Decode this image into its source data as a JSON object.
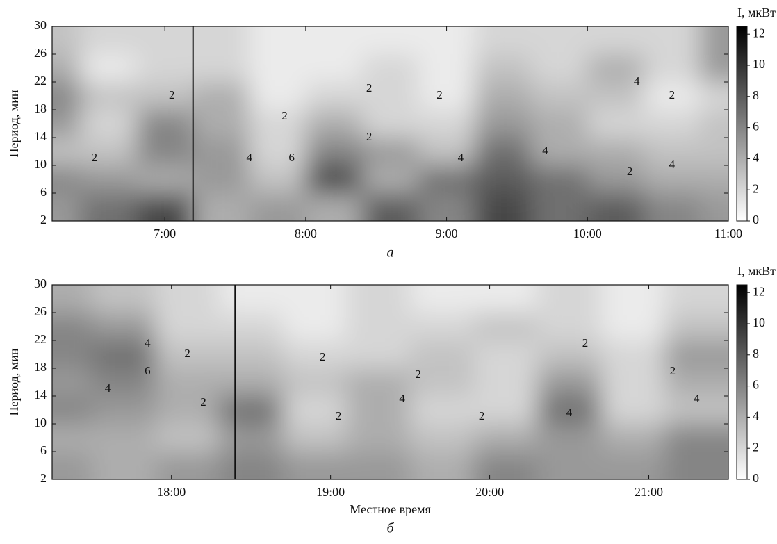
{
  "chart_data": [
    {
      "type": "heatmap",
      "y_label": "Период, мин",
      "panel_label": "а",
      "xlim": [
        6.2,
        11.0
      ],
      "xticks": [
        {
          "value": 7,
          "label": "7:00"
        },
        {
          "value": 8,
          "label": "8:00"
        },
        {
          "value": 9,
          "label": "9:00"
        },
        {
          "value": 10,
          "label": "10:00"
        },
        {
          "value": 11,
          "label": "11:00"
        }
      ],
      "ylim": [
        2,
        30
      ],
      "yticks": [
        2,
        6,
        10,
        14,
        18,
        22,
        26,
        30
      ],
      "zlim": [
        0,
        12.5
      ],
      "zticks": [
        0,
        2,
        4,
        6,
        8,
        10,
        12
      ],
      "colorbar_label": "I, мкВт",
      "marker_x": 7.2,
      "x": [
        6.2,
        6.6,
        7.0,
        7.4,
        7.8,
        8.2,
        8.6,
        9.0,
        9.4,
        9.8,
        10.2,
        10.6,
        11.0
      ],
      "y": [
        4,
        8,
        12,
        16,
        20,
        24,
        28
      ],
      "z": [
        [
          5,
          7,
          9,
          4,
          5,
          4,
          8,
          6,
          9,
          7,
          8,
          6,
          5
        ],
        [
          6,
          5,
          4,
          5,
          3,
          9,
          4,
          7,
          8,
          7,
          5,
          4,
          4
        ],
        [
          3,
          3,
          6,
          5,
          2,
          6,
          5,
          3,
          7,
          4,
          4,
          3,
          3
        ],
        [
          5,
          2,
          6,
          4,
          2,
          4,
          2,
          2,
          5,
          4,
          2,
          2,
          3
        ],
        [
          6,
          3,
          3,
          4,
          1,
          2,
          2,
          1,
          4,
          3,
          3,
          1,
          2
        ],
        [
          4,
          1,
          2,
          2,
          1,
          1,
          2,
          1,
          3,
          2,
          4,
          2,
          5
        ],
        [
          3,
          2,
          2,
          2,
          1,
          1,
          1,
          1,
          2,
          2,
          2,
          2,
          5
        ]
      ],
      "contour_labels": [
        {
          "value": 2,
          "x": 7.05,
          "y": 20
        },
        {
          "value": 2,
          "x": 7.85,
          "y": 17
        },
        {
          "value": 4,
          "x": 7.6,
          "y": 11
        },
        {
          "value": 6,
          "x": 7.9,
          "y": 11
        },
        {
          "value": 2,
          "x": 8.45,
          "y": 21
        },
        {
          "value": 2,
          "x": 8.45,
          "y": 14
        },
        {
          "value": 2,
          "x": 8.95,
          "y": 20
        },
        {
          "value": 4,
          "x": 9.1,
          "y": 11
        },
        {
          "value": 2,
          "x": 10.3,
          "y": 9
        },
        {
          "value": 4,
          "x": 10.6,
          "y": 10
        },
        {
          "value": 4,
          "x": 10.35,
          "y": 22
        },
        {
          "value": 2,
          "x": 10.6,
          "y": 20
        },
        {
          "value": 4,
          "x": 9.7,
          "y": 12
        },
        {
          "value": 2,
          "x": 6.5,
          "y": 11
        }
      ]
    },
    {
      "type": "heatmap",
      "y_label": "Период, мин",
      "x_label": "Местное время",
      "panel_label": "б",
      "xlim": [
        17.25,
        21.5
      ],
      "xticks": [
        {
          "value": 18,
          "label": "18:00"
        },
        {
          "value": 19,
          "label": "19:00"
        },
        {
          "value": 20,
          "label": "20:00"
        },
        {
          "value": 21,
          "label": "21:00"
        }
      ],
      "ylim": [
        2,
        30
      ],
      "yticks": [
        2,
        6,
        10,
        14,
        18,
        22,
        26,
        30
      ],
      "zlim": [
        0,
        12.5
      ],
      "zticks": [
        0,
        2,
        4,
        6,
        8,
        10,
        12
      ],
      "colorbar_label": "I, мкВт",
      "marker_x": 18.4,
      "x": [
        17.3,
        17.7,
        18.1,
        18.5,
        18.9,
        19.3,
        19.7,
        20.1,
        20.5,
        20.9,
        21.3
      ],
      "y": [
        4,
        8,
        12,
        16,
        20,
        24,
        28
      ],
      "z": [
        [
          5,
          4,
          5,
          6,
          5,
          5,
          4,
          6,
          5,
          5,
          6
        ],
        [
          4,
          4,
          3,
          5,
          3,
          4,
          3,
          4,
          5,
          4,
          6
        ],
        [
          6,
          5,
          4,
          7,
          2,
          4,
          2,
          2,
          7,
          2,
          3
        ],
        [
          5,
          6,
          4,
          4,
          3,
          4,
          3,
          2,
          5,
          2,
          4
        ],
        [
          6,
          7,
          3,
          3,
          2,
          2,
          3,
          2,
          3,
          2,
          5
        ],
        [
          6,
          5,
          2,
          2,
          1,
          2,
          2,
          3,
          2,
          1,
          3
        ],
        [
          4,
          3,
          2,
          1,
          1,
          2,
          1,
          1,
          2,
          1,
          2
        ]
      ],
      "contour_labels": [
        {
          "value": 4,
          "x": 17.85,
          "y": 21.5
        },
        {
          "value": 6,
          "x": 17.85,
          "y": 17.5
        },
        {
          "value": 4,
          "x": 17.6,
          "y": 15
        },
        {
          "value": 2,
          "x": 18.1,
          "y": 20
        },
        {
          "value": 2,
          "x": 18.2,
          "y": 13
        },
        {
          "value": 2,
          "x": 18.95,
          "y": 19.5
        },
        {
          "value": 2,
          "x": 19.05,
          "y": 11
        },
        {
          "value": 2,
          "x": 19.55,
          "y": 17
        },
        {
          "value": 4,
          "x": 19.45,
          "y": 13.5
        },
        {
          "value": 2,
          "x": 19.95,
          "y": 11
        },
        {
          "value": 2,
          "x": 20.6,
          "y": 21.5
        },
        {
          "value": 4,
          "x": 20.5,
          "y": 11.5
        },
        {
          "value": 2,
          "x": 21.15,
          "y": 17.5
        },
        {
          "value": 4,
          "x": 21.3,
          "y": 13.5
        }
      ]
    }
  ]
}
